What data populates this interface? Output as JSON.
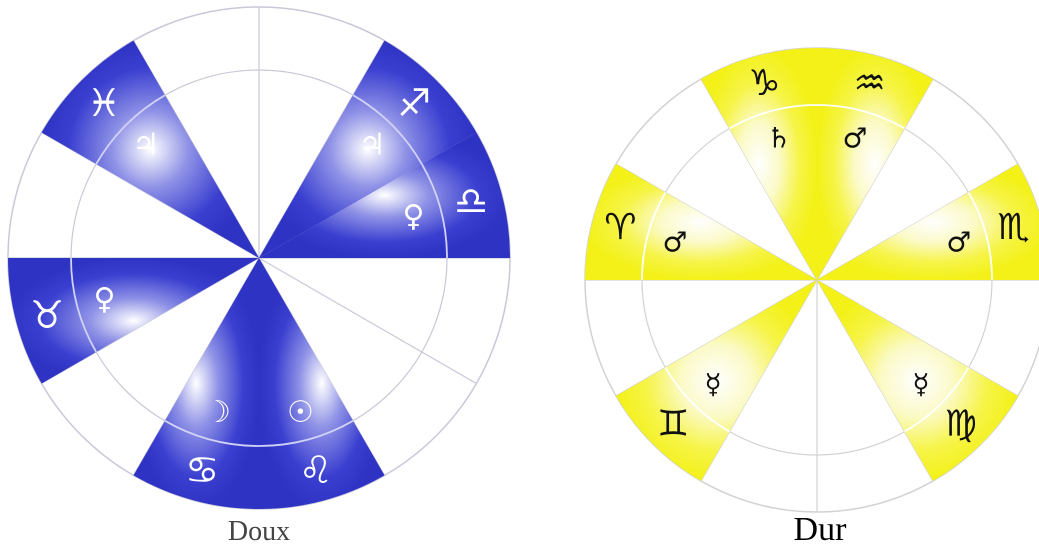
{
  "wheels": [
    {
      "id": "doux",
      "caption": "Doux",
      "fill_color": "#3a3fd0",
      "glyph_color": "#ffffff",
      "segments": [
        {
          "start_deg": 120,
          "outer": "♓",
          "inner": "♃"
        },
        {
          "start_deg": 30,
          "outer": "♐",
          "inner": "♃"
        },
        {
          "start_deg": 180,
          "outer": "♉",
          "inner": "♀"
        },
        {
          "start_deg": 0,
          "outer": "♎",
          "inner": "♀"
        },
        {
          "start_deg": 240,
          "outer": "♋",
          "inner": "☽"
        },
        {
          "start_deg": 270,
          "outer": "♌",
          "inner": "☉"
        }
      ]
    },
    {
      "id": "dur",
      "caption": "Dur",
      "fill_color": "#f4f21c",
      "glyph_color": "#111111",
      "segments": [
        {
          "start_deg": 60,
          "outer": "♒",
          "inner": "♂"
        },
        {
          "start_deg": 90,
          "outer": "♑",
          "inner": "♄"
        },
        {
          "start_deg": 150,
          "outer": "♈",
          "inner": "♂"
        },
        {
          "start_deg": 0,
          "outer": "♏",
          "inner": "♂"
        },
        {
          "start_deg": 210,
          "outer": "♊",
          "inner": "☿"
        },
        {
          "start_deg": 300,
          "outer": "♍",
          "inner": "☿"
        }
      ]
    }
  ]
}
